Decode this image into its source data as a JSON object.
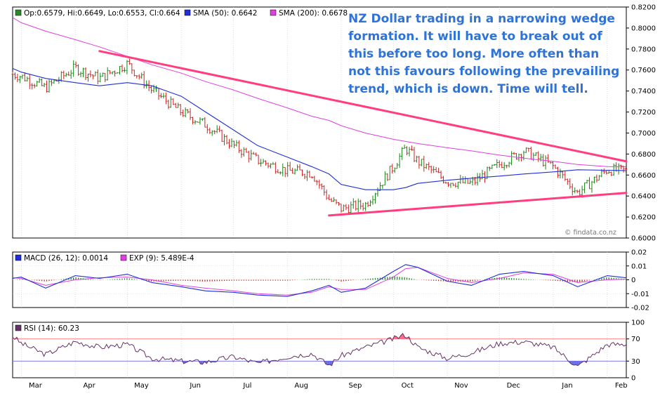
{
  "colors": {
    "panel_border": "#000000",
    "grid": "#c8c8c8",
    "sma50": "#1f2fd8",
    "sma200": "#e040e0",
    "trendline": "#ff3d7f",
    "annotation": "#2f73d6",
    "bar_up": "#118811",
    "bar_down": "#cc2222",
    "rsi_line": "#663366",
    "rsi_over": "#ff6680",
    "rsi_under": "#6a6ae6",
    "rsi_level": "#ff7777",
    "macd_hist_pos": "#228822",
    "macd_hist_neg": "#cc2222"
  },
  "legend": {
    "price": "Op:0.6579, Hi:0.6649, Lo:0.6553, Cl:0.664",
    "sma50": "SMA (50): 0.6642",
    "sma200": "SMA (200): 0.6678",
    "macd": "MACD (26, 12): 0.0014",
    "exp": "EXP (9): 5.489E-4",
    "rsi": "RSI (14): 60.23"
  },
  "annotation": [
    "NZ Dollar trading in a narrowing wedge",
    "formation. It will have to break out of",
    "this before too long. More often than",
    "not this favours following the prevailing",
    "trend, which is down. Time will tell."
  ],
  "watermark": "© findata.co.nz",
  "chart_data": [
    {
      "type": "line",
      "panel": "price",
      "ylim": [
        0.6,
        0.82
      ],
      "yticks": [
        "0.8200",
        "0.8000",
        "0.7800",
        "0.7600",
        "0.7400",
        "0.7200",
        "0.7000",
        "0.6800",
        "0.6600",
        "0.6400",
        "0.6200",
        "0.6000"
      ],
      "x": [
        "Feb-24",
        "Mar-01",
        "Mar-15",
        "Apr-01",
        "Apr-15",
        "May-01",
        "May-15",
        "Jun-01",
        "Jun-15",
        "Jul-01",
        "Jul-15",
        "Aug-01",
        "Aug-15",
        "Aug-25",
        "Sep-01",
        "Sep-15",
        "Oct-01",
        "Oct-08",
        "Oct-15",
        "Nov-01",
        "Nov-15",
        "Dec-01",
        "Dec-15",
        "Jan-01",
        "Jan-15",
        "Feb-01",
        "Feb-12"
      ],
      "xlabels": [
        "Mar",
        "Apr",
        "May",
        "Jun",
        "Jul",
        "Aug",
        "Sep",
        "Oct",
        "Nov",
        "Dec",
        "Jan",
        "Feb"
      ],
      "series": [
        {
          "name": "SMA (50)",
          "values": [
            0.7615,
            0.758,
            0.752,
            0.748,
            0.745,
            0.748,
            0.745,
            0.735,
            0.72,
            0.703,
            0.688,
            0.677,
            0.668,
            0.661,
            0.651,
            0.646,
            0.646,
            0.648,
            0.652,
            0.655,
            0.657,
            0.659,
            0.661,
            0.663,
            0.665,
            0.6645,
            0.6642
          ]
        },
        {
          "name": "SMA (200)",
          "values": [
            0.81,
            0.805,
            0.797,
            0.789,
            0.782,
            0.773,
            0.765,
            0.757,
            0.749,
            0.741,
            0.733,
            0.724,
            0.716,
            0.712,
            0.707,
            0.7,
            0.694,
            0.692,
            0.69,
            0.686,
            0.683,
            0.679,
            0.676,
            0.673,
            0.67,
            0.668,
            0.6678
          ]
        },
        {
          "name": "",
          "values": [
            0.756,
            0.754,
            0.743,
            0.762,
            0.752,
            0.766,
            0.741,
            0.72,
            0.708,
            0.688,
            0.674,
            0.664,
            0.662,
            0.637,
            0.628,
            0.632,
            0.668,
            0.686,
            0.673,
            0.654,
            0.652,
            0.67,
            0.683,
            0.668,
            0.643,
            0.665,
            0.664
          ]
        }
      ],
      "trendlines": [
        {
          "from": [
            "Apr-15",
            0.778
          ],
          "to": [
            "Feb-12",
            0.673
          ]
        },
        {
          "from": [
            "Aug-25",
            0.6215
          ],
          "to": [
            "Feb-12",
            0.643
          ]
        }
      ]
    },
    {
      "type": "line",
      "panel": "macd",
      "ylim": [
        -0.02,
        0.02
      ],
      "yticks": [
        "0.02",
        "0.01",
        "0",
        "-0.01",
        "-0.02"
      ],
      "series": [
        {
          "name": "MACD (26, 12)",
          "values": [
            0.001,
            0.002,
            -0.006,
            0.003,
            0.001,
            0.004,
            -0.002,
            -0.005,
            -0.008,
            -0.009,
            -0.011,
            -0.012,
            -0.008,
            -0.004,
            -0.009,
            -0.006,
            0.006,
            0.011,
            0.009,
            -0.001,
            -0.004,
            0.004,
            0.006,
            0.003,
            -0.005,
            0.003,
            0.0014
          ]
        },
        {
          "name": "EXP (9)",
          "values": [
            0.0015,
            0.001,
            -0.004,
            0.0,
            0.0015,
            0.002,
            0.0,
            -0.004,
            -0.006,
            -0.008,
            -0.01,
            -0.011,
            -0.009,
            -0.005,
            -0.007,
            -0.007,
            0.002,
            0.008,
            0.009,
            0.001,
            -0.002,
            0.001,
            0.005,
            0.004,
            -0.002,
            0.0,
            0.0005
          ]
        }
      ]
    },
    {
      "type": "line",
      "panel": "rsi",
      "ylim": [
        0,
        100
      ],
      "yticks": [
        "100",
        "70",
        "30",
        "0"
      ],
      "levels": [
        70,
        30
      ],
      "series": [
        {
          "name": "RSI (14)",
          "values": [
            75,
            62,
            42,
            65,
            55,
            60,
            35,
            30,
            28,
            38,
            26,
            38,
            44,
            22,
            40,
            55,
            70,
            78,
            55,
            35,
            45,
            62,
            65,
            55,
            20,
            60,
            60.23
          ]
        }
      ]
    }
  ]
}
